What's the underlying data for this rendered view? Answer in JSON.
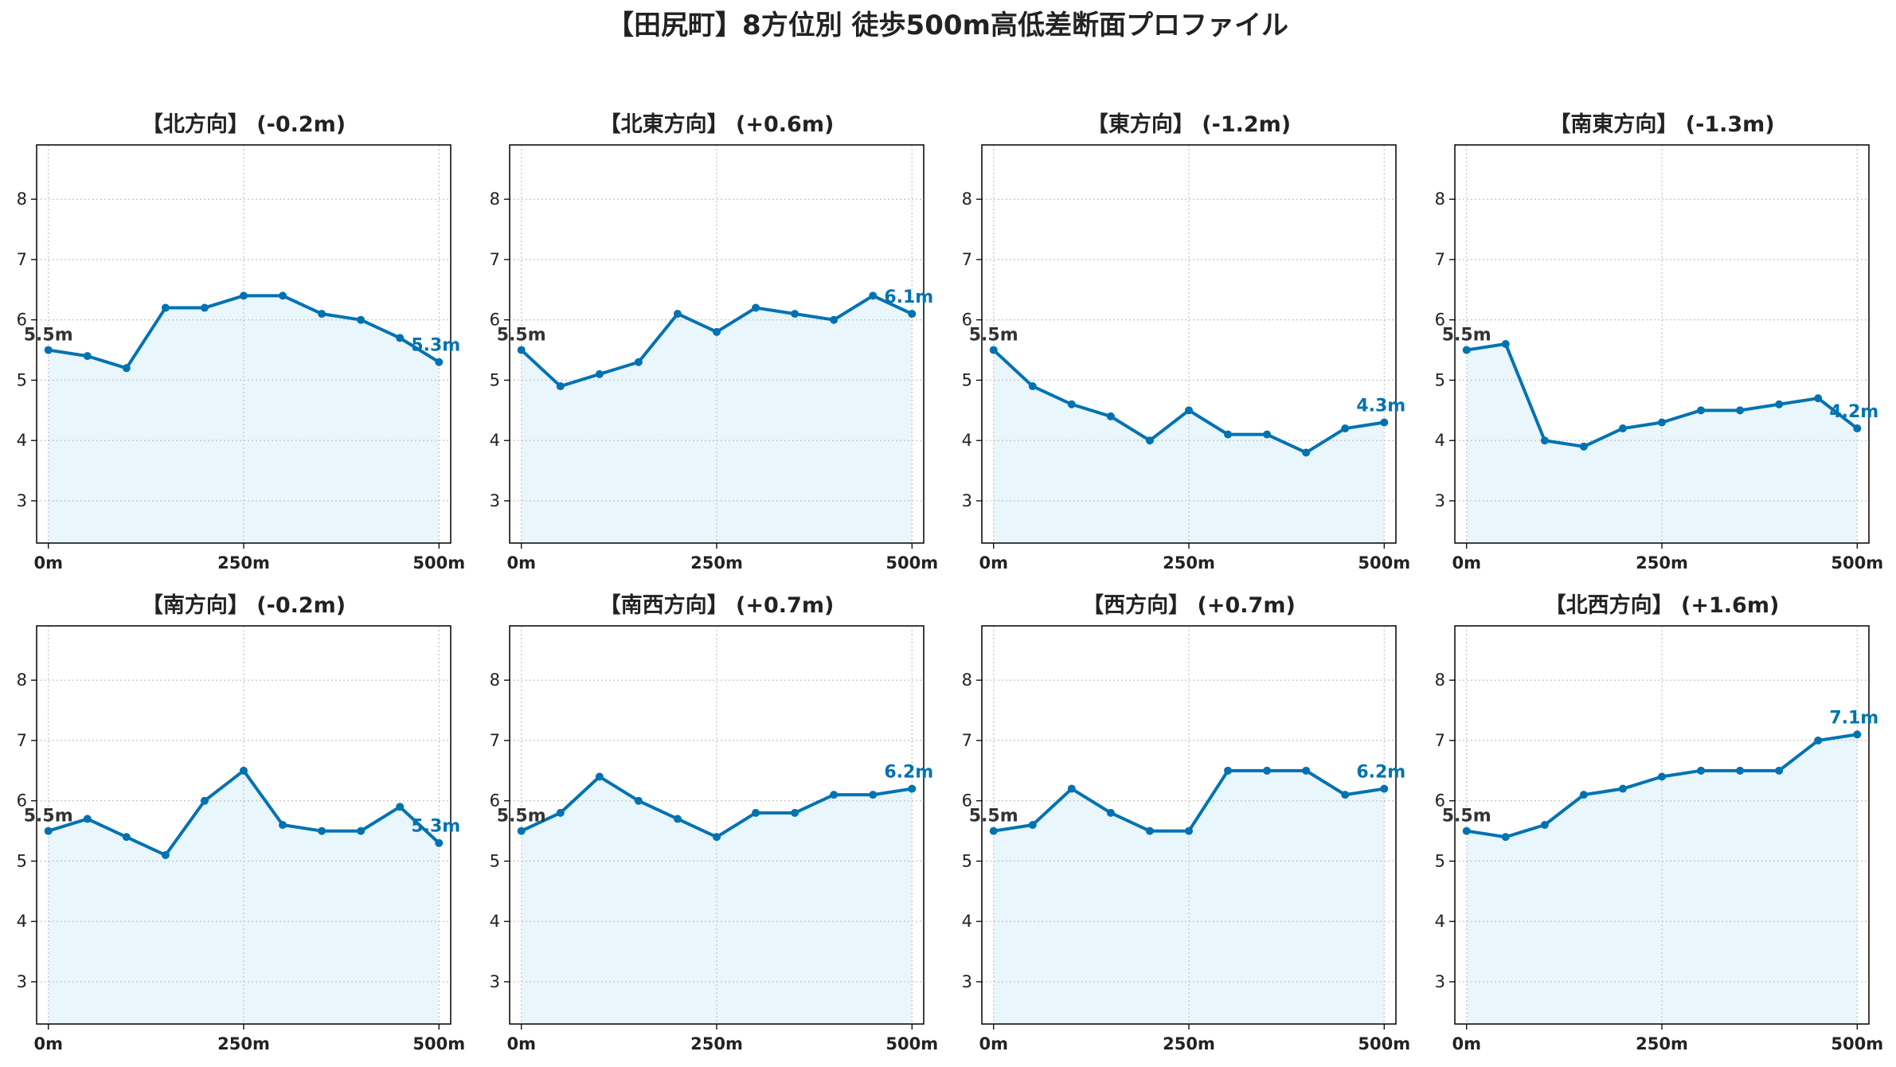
{
  "figure": {
    "title": "【田尻町】8方位別 徒歩500m高低差断面プロファイル"
  },
  "colors": {
    "line": "#0072B2",
    "fill": "#E9F6FB",
    "end_label": "#0072B2",
    "start_label": "#333333",
    "grid": "#c8c8c8",
    "axes": "#000000"
  },
  "chart_data": [
    {
      "type": "area",
      "title": "【北方向】 (-0.2m)",
      "x": [
        0,
        50,
        100,
        150,
        200,
        250,
        300,
        350,
        400,
        450,
        500
      ],
      "values": [
        5.5,
        5.4,
        5.2,
        6.2,
        6.2,
        6.4,
        6.4,
        6.1,
        6.0,
        5.7,
        5.3
      ],
      "x_ticks": [
        {
          "value": 0,
          "label": "0m"
        },
        {
          "value": 250,
          "label": "250m"
        },
        {
          "value": 500,
          "label": "500m"
        }
      ],
      "y_ticks": [
        3,
        4,
        5,
        6,
        7,
        8
      ],
      "xlim": [
        -15,
        515
      ],
      "ylim": [
        2.3,
        8.9
      ],
      "grid": true,
      "start_label": "5.5m",
      "end_label": "5.3m"
    },
    {
      "type": "area",
      "title": "【北東方向】 (+0.6m)",
      "x": [
        0,
        50,
        100,
        150,
        200,
        250,
        300,
        350,
        400,
        450,
        500
      ],
      "values": [
        5.5,
        4.9,
        5.1,
        5.3,
        6.1,
        5.8,
        6.2,
        6.1,
        6.0,
        6.4,
        6.1
      ],
      "x_ticks": [
        {
          "value": 0,
          "label": "0m"
        },
        {
          "value": 250,
          "label": "250m"
        },
        {
          "value": 500,
          "label": "500m"
        }
      ],
      "y_ticks": [
        3,
        4,
        5,
        6,
        7,
        8
      ],
      "xlim": [
        -15,
        515
      ],
      "ylim": [
        2.3,
        8.9
      ],
      "grid": true,
      "start_label": "5.5m",
      "end_label": "6.1m"
    },
    {
      "type": "area",
      "title": "【東方向】 (-1.2m)",
      "x": [
        0,
        50,
        100,
        150,
        200,
        250,
        300,
        350,
        400,
        450,
        500
      ],
      "values": [
        5.5,
        4.9,
        4.6,
        4.4,
        4.0,
        4.5,
        4.1,
        4.1,
        3.8,
        4.2,
        4.3
      ],
      "x_ticks": [
        {
          "value": 0,
          "label": "0m"
        },
        {
          "value": 250,
          "label": "250m"
        },
        {
          "value": 500,
          "label": "500m"
        }
      ],
      "y_ticks": [
        3,
        4,
        5,
        6,
        7,
        8
      ],
      "xlim": [
        -15,
        515
      ],
      "ylim": [
        2.3,
        8.9
      ],
      "grid": true,
      "start_label": "5.5m",
      "end_label": "4.3m"
    },
    {
      "type": "area",
      "title": "【南東方向】 (-1.3m)",
      "x": [
        0,
        50,
        100,
        150,
        200,
        250,
        300,
        350,
        400,
        450,
        500
      ],
      "values": [
        5.5,
        5.6,
        4.0,
        3.9,
        4.2,
        4.3,
        4.5,
        4.5,
        4.6,
        4.7,
        4.2
      ],
      "x_ticks": [
        {
          "value": 0,
          "label": "0m"
        },
        {
          "value": 250,
          "label": "250m"
        },
        {
          "value": 500,
          "label": "500m"
        }
      ],
      "y_ticks": [
        3,
        4,
        5,
        6,
        7,
        8
      ],
      "xlim": [
        -15,
        515
      ],
      "ylim": [
        2.3,
        8.9
      ],
      "grid": true,
      "start_label": "5.5m",
      "end_label": "4.2m"
    },
    {
      "type": "area",
      "title": "【南方向】 (-0.2m)",
      "x": [
        0,
        50,
        100,
        150,
        200,
        250,
        300,
        350,
        400,
        450,
        500
      ],
      "values": [
        5.5,
        5.7,
        5.4,
        5.1,
        6.0,
        6.5,
        5.6,
        5.5,
        5.5,
        5.9,
        5.3
      ],
      "x_ticks": [
        {
          "value": 0,
          "label": "0m"
        },
        {
          "value": 250,
          "label": "250m"
        },
        {
          "value": 500,
          "label": "500m"
        }
      ],
      "y_ticks": [
        3,
        4,
        5,
        6,
        7,
        8
      ],
      "xlim": [
        -15,
        515
      ],
      "ylim": [
        2.3,
        8.9
      ],
      "grid": true,
      "start_label": "5.5m",
      "end_label": "5.3m"
    },
    {
      "type": "area",
      "title": "【南西方向】 (+0.7m)",
      "x": [
        0,
        50,
        100,
        150,
        200,
        250,
        300,
        350,
        400,
        450,
        500
      ],
      "values": [
        5.5,
        5.8,
        6.4,
        6.0,
        5.7,
        5.4,
        5.8,
        5.8,
        6.1,
        6.1,
        6.2
      ],
      "x_ticks": [
        {
          "value": 0,
          "label": "0m"
        },
        {
          "value": 250,
          "label": "250m"
        },
        {
          "value": 500,
          "label": "500m"
        }
      ],
      "y_ticks": [
        3,
        4,
        5,
        6,
        7,
        8
      ],
      "xlim": [
        -15,
        515
      ],
      "ylim": [
        2.3,
        8.9
      ],
      "grid": true,
      "start_label": "5.5m",
      "end_label": "6.2m"
    },
    {
      "type": "area",
      "title": "【西方向】 (+0.7m)",
      "x": [
        0,
        50,
        100,
        150,
        200,
        250,
        300,
        350,
        400,
        450,
        500
      ],
      "values": [
        5.5,
        5.6,
        6.2,
        5.8,
        5.5,
        5.5,
        6.5,
        6.5,
        6.5,
        6.1,
        6.2
      ],
      "x_ticks": [
        {
          "value": 0,
          "label": "0m"
        },
        {
          "value": 250,
          "label": "250m"
        },
        {
          "value": 500,
          "label": "500m"
        }
      ],
      "y_ticks": [
        3,
        4,
        5,
        6,
        7,
        8
      ],
      "xlim": [
        -15,
        515
      ],
      "ylim": [
        2.3,
        8.9
      ],
      "grid": true,
      "start_label": "5.5m",
      "end_label": "6.2m"
    },
    {
      "type": "area",
      "title": "【北西方向】 (+1.6m)",
      "x": [
        0,
        50,
        100,
        150,
        200,
        250,
        300,
        350,
        400,
        450,
        500
      ],
      "values": [
        5.5,
        5.4,
        5.6,
        6.1,
        6.2,
        6.4,
        6.5,
        6.5,
        6.5,
        7.0,
        7.1
      ],
      "x_ticks": [
        {
          "value": 0,
          "label": "0m"
        },
        {
          "value": 250,
          "label": "250m"
        },
        {
          "value": 500,
          "label": "500m"
        }
      ],
      "y_ticks": [
        3,
        4,
        5,
        6,
        7,
        8
      ],
      "xlim": [
        -15,
        515
      ],
      "ylim": [
        2.3,
        8.9
      ],
      "grid": true,
      "start_label": "5.5m",
      "end_label": "7.1m"
    }
  ]
}
